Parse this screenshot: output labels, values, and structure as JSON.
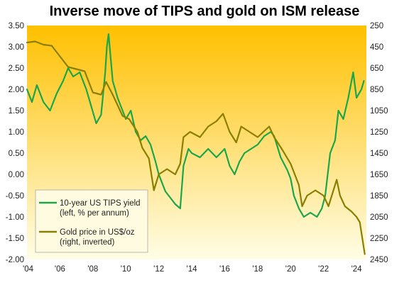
{
  "chart_data": {
    "type": "line",
    "title": "Inverse move of TIPS and gold on ISM release",
    "x_tick_labels": [
      "'04",
      "'06",
      "'08",
      "'10",
      "'12",
      "'14",
      "'16",
      "'18",
      "'20",
      "'22",
      "'24"
    ],
    "x_tick_years": [
      2004,
      2006,
      2008,
      2010,
      2012,
      2014,
      2016,
      2018,
      2020,
      2022,
      2024
    ],
    "xlim": [
      2004,
      2024.6
    ],
    "left_axis": {
      "ylim": [
        -2.0,
        3.5
      ],
      "tick_labels": [
        "3.50",
        "3.00",
        "2.50",
        "2.00",
        "1.50",
        "1.00",
        "0.50",
        "0.00",
        "-0.50",
        "-1.00",
        "-1.50",
        "-2.00"
      ],
      "tick_values": [
        3.5,
        3.0,
        2.5,
        2.0,
        1.5,
        1.0,
        0.5,
        0.0,
        -0.5,
        -1.0,
        -1.5,
        -2.0
      ]
    },
    "right_axis": {
      "inverted": true,
      "ylim": [
        250,
        2450
      ],
      "tick_labels": [
        "250",
        "450",
        "650",
        "850",
        "1050",
        "1250",
        "1450",
        "1650",
        "1850",
        "2050",
        "2250",
        "2450"
      ],
      "tick_values": [
        250,
        450,
        650,
        850,
        1050,
        1250,
        1450,
        1650,
        1850,
        2050,
        2250,
        2450
      ]
    },
    "background_gradient": {
      "top": "#ffc000",
      "bottom": "#fffde6"
    },
    "grid": false,
    "legend_position": "bottom-left",
    "series": [
      {
        "name": "10-year US TIPS yield (left, % per annum)",
        "legend_lines": [
          "10-year US TIPS yield",
          "(left, % per annum)"
        ],
        "axis": "left",
        "color": "#1aa64a",
        "x": [
          2004.0,
          2004.3,
          2004.6,
          2005.0,
          2005.4,
          2005.8,
          2006.2,
          2006.5,
          2006.8,
          2007.2,
          2007.6,
          2007.9,
          2008.2,
          2008.5,
          2008.75,
          2008.85,
          2008.95,
          2009.2,
          2009.5,
          2009.8,
          2010.0,
          2010.3,
          2010.6,
          2010.9,
          2011.2,
          2011.5,
          2011.8,
          2012.0,
          2012.4,
          2012.8,
          2013.0,
          2013.3,
          2013.5,
          2013.8,
          2014.0,
          2014.5,
          2015.0,
          2015.5,
          2016.0,
          2016.3,
          2016.6,
          2016.9,
          2017.2,
          2017.6,
          2018.0,
          2018.4,
          2018.8,
          2019.0,
          2019.4,
          2019.8,
          2020.0,
          2020.2,
          2020.5,
          2020.8,
          2021.2,
          2021.6,
          2021.9,
          2022.1,
          2022.4,
          2022.7,
          2022.9,
          2023.2,
          2023.5,
          2023.8,
          2024.0,
          2024.3,
          2024.45
        ],
        "y": [
          2.0,
          1.7,
          2.1,
          1.7,
          1.5,
          1.9,
          2.2,
          2.5,
          2.3,
          2.4,
          2.0,
          1.6,
          1.2,
          1.4,
          2.4,
          3.0,
          3.3,
          2.2,
          1.8,
          1.5,
          1.3,
          1.5,
          1.0,
          0.8,
          0.9,
          0.7,
          0.3,
          0.0,
          -0.4,
          -0.6,
          -0.7,
          -0.8,
          0.2,
          0.6,
          0.5,
          0.4,
          0.6,
          0.4,
          0.6,
          0.2,
          0.0,
          0.3,
          0.5,
          0.6,
          0.7,
          0.9,
          1.0,
          0.9,
          0.4,
          0.1,
          -0.1,
          -0.5,
          -0.8,
          -1.0,
          -0.9,
          -1.0,
          -0.8,
          -0.5,
          0.5,
          0.8,
          1.5,
          1.3,
          1.8,
          2.4,
          1.8,
          2.0,
          2.2
        ]
      },
      {
        "name": "Gold price in US$/oz (right, inverted)",
        "legend_lines": [
          "Gold price in US$/oz",
          "(right, inverted)"
        ],
        "axis": "right",
        "color": "#8a7f00",
        "x": [
          2004.0,
          2004.5,
          2005.0,
          2005.5,
          2006.0,
          2006.5,
          2007.0,
          2007.5,
          2008.0,
          2008.5,
          2008.8,
          2009.2,
          2009.8,
          2010.2,
          2010.7,
          2011.0,
          2011.4,
          2011.7,
          2012.0,
          2012.5,
          2013.0,
          2013.3,
          2013.5,
          2013.9,
          2014.5,
          2015.0,
          2015.5,
          2015.9,
          2016.3,
          2016.7,
          2017.0,
          2017.5,
          2018.0,
          2018.7,
          2019.0,
          2019.5,
          2020.0,
          2020.5,
          2020.7,
          2021.0,
          2021.5,
          2022.0,
          2022.3,
          2022.8,
          2023.0,
          2023.3,
          2023.7,
          2024.0,
          2024.2,
          2024.4,
          2024.5
        ],
        "y": [
          410,
          400,
          430,
          440,
          540,
          640,
          660,
          680,
          880,
          900,
          780,
          900,
          1100,
          1130,
          1250,
          1400,
          1500,
          1800,
          1650,
          1600,
          1650,
          1550,
          1300,
          1250,
          1300,
          1200,
          1150,
          1080,
          1250,
          1350,
          1200,
          1250,
          1300,
          1200,
          1300,
          1420,
          1550,
          1750,
          1950,
          1850,
          1800,
          1850,
          1950,
          1700,
          1850,
          1950,
          2000,
          2050,
          2100,
          2300,
          2400
        ]
      }
    ]
  }
}
